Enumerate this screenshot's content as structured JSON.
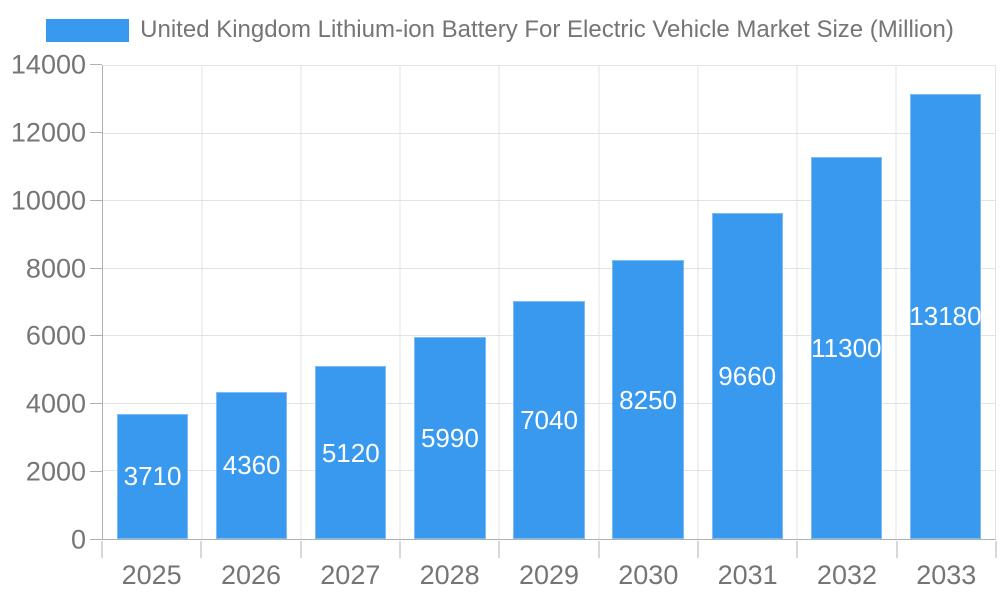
{
  "chart_data": {
    "type": "bar",
    "title": "United Kingdom Lithium-ion Battery For Electric Vehicle Market Size (Million)",
    "categories": [
      "2025",
      "2026",
      "2027",
      "2028",
      "2029",
      "2030",
      "2031",
      "2032",
      "2033"
    ],
    "values": [
      3710,
      4360,
      5120,
      5990,
      7040,
      8250,
      9660,
      11300,
      13180
    ],
    "series_name": "United Kingdom Lithium-ion Battery For Electric Vehicle Market Size (Million)",
    "xlabel": "",
    "ylabel": "",
    "ylim": [
      0,
      14000
    ],
    "ytick_step": 2000,
    "y_tick_labels": [
      "0",
      "2000",
      "4000",
      "6000",
      "8000",
      "10000",
      "12000",
      "14000"
    ],
    "grid": true,
    "legend_position": "top",
    "value_labels_inside_bars": true,
    "colors": {
      "bar": "#3899EE",
      "value_label": "#FFFFFF",
      "axis_text": "#757575",
      "gridline": "#E3E3E3",
      "axis_line": "#B0B0B0",
      "background": "#FFFFFF"
    }
  }
}
